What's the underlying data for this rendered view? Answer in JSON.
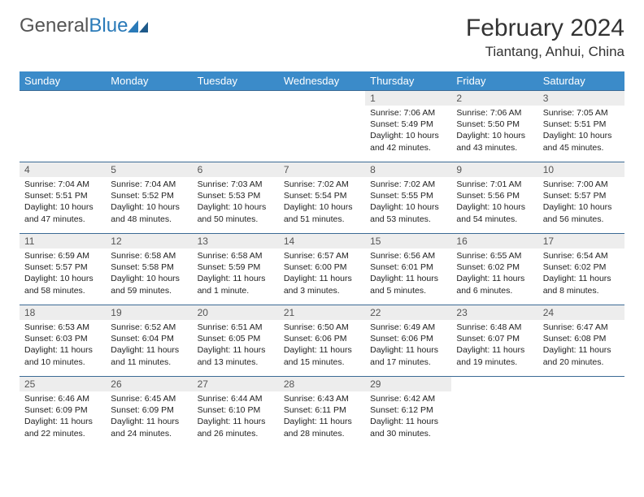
{
  "logo": {
    "word1": "General",
    "word2": "Blue"
  },
  "title": "February 2024",
  "location": "Tiantang, Anhui, China",
  "colors": {
    "header_bg": "#3b8bc9",
    "header_text": "#ffffff",
    "row_border": "#3b6a95",
    "daynum_bg": "#ededed",
    "logo_gray": "#555555",
    "logo_blue": "#2a7ab8"
  },
  "typography": {
    "month_title_pt": 30,
    "location_pt": 17,
    "dayheader_pt": 13,
    "daynum_pt": 12,
    "body_pt": 10.5
  },
  "day_headers": [
    "Sunday",
    "Monday",
    "Tuesday",
    "Wednesday",
    "Thursday",
    "Friday",
    "Saturday"
  ],
  "weeks": [
    [
      {
        "empty": true
      },
      {
        "empty": true
      },
      {
        "empty": true
      },
      {
        "empty": true
      },
      {
        "n": "1",
        "sr": "Sunrise: 7:06 AM",
        "ss": "Sunset: 5:49 PM",
        "dl": "Daylight: 10 hours and 42 minutes."
      },
      {
        "n": "2",
        "sr": "Sunrise: 7:06 AM",
        "ss": "Sunset: 5:50 PM",
        "dl": "Daylight: 10 hours and 43 minutes."
      },
      {
        "n": "3",
        "sr": "Sunrise: 7:05 AM",
        "ss": "Sunset: 5:51 PM",
        "dl": "Daylight: 10 hours and 45 minutes."
      }
    ],
    [
      {
        "n": "4",
        "sr": "Sunrise: 7:04 AM",
        "ss": "Sunset: 5:51 PM",
        "dl": "Daylight: 10 hours and 47 minutes."
      },
      {
        "n": "5",
        "sr": "Sunrise: 7:04 AM",
        "ss": "Sunset: 5:52 PM",
        "dl": "Daylight: 10 hours and 48 minutes."
      },
      {
        "n": "6",
        "sr": "Sunrise: 7:03 AM",
        "ss": "Sunset: 5:53 PM",
        "dl": "Daylight: 10 hours and 50 minutes."
      },
      {
        "n": "7",
        "sr": "Sunrise: 7:02 AM",
        "ss": "Sunset: 5:54 PM",
        "dl": "Daylight: 10 hours and 51 minutes."
      },
      {
        "n": "8",
        "sr": "Sunrise: 7:02 AM",
        "ss": "Sunset: 5:55 PM",
        "dl": "Daylight: 10 hours and 53 minutes."
      },
      {
        "n": "9",
        "sr": "Sunrise: 7:01 AM",
        "ss": "Sunset: 5:56 PM",
        "dl": "Daylight: 10 hours and 54 minutes."
      },
      {
        "n": "10",
        "sr": "Sunrise: 7:00 AM",
        "ss": "Sunset: 5:57 PM",
        "dl": "Daylight: 10 hours and 56 minutes."
      }
    ],
    [
      {
        "n": "11",
        "sr": "Sunrise: 6:59 AM",
        "ss": "Sunset: 5:57 PM",
        "dl": "Daylight: 10 hours and 58 minutes."
      },
      {
        "n": "12",
        "sr": "Sunrise: 6:58 AM",
        "ss": "Sunset: 5:58 PM",
        "dl": "Daylight: 10 hours and 59 minutes."
      },
      {
        "n": "13",
        "sr": "Sunrise: 6:58 AM",
        "ss": "Sunset: 5:59 PM",
        "dl": "Daylight: 11 hours and 1 minute."
      },
      {
        "n": "14",
        "sr": "Sunrise: 6:57 AM",
        "ss": "Sunset: 6:00 PM",
        "dl": "Daylight: 11 hours and 3 minutes."
      },
      {
        "n": "15",
        "sr": "Sunrise: 6:56 AM",
        "ss": "Sunset: 6:01 PM",
        "dl": "Daylight: 11 hours and 5 minutes."
      },
      {
        "n": "16",
        "sr": "Sunrise: 6:55 AM",
        "ss": "Sunset: 6:02 PM",
        "dl": "Daylight: 11 hours and 6 minutes."
      },
      {
        "n": "17",
        "sr": "Sunrise: 6:54 AM",
        "ss": "Sunset: 6:02 PM",
        "dl": "Daylight: 11 hours and 8 minutes."
      }
    ],
    [
      {
        "n": "18",
        "sr": "Sunrise: 6:53 AM",
        "ss": "Sunset: 6:03 PM",
        "dl": "Daylight: 11 hours and 10 minutes."
      },
      {
        "n": "19",
        "sr": "Sunrise: 6:52 AM",
        "ss": "Sunset: 6:04 PM",
        "dl": "Daylight: 11 hours and 11 minutes."
      },
      {
        "n": "20",
        "sr": "Sunrise: 6:51 AM",
        "ss": "Sunset: 6:05 PM",
        "dl": "Daylight: 11 hours and 13 minutes."
      },
      {
        "n": "21",
        "sr": "Sunrise: 6:50 AM",
        "ss": "Sunset: 6:06 PM",
        "dl": "Daylight: 11 hours and 15 minutes."
      },
      {
        "n": "22",
        "sr": "Sunrise: 6:49 AM",
        "ss": "Sunset: 6:06 PM",
        "dl": "Daylight: 11 hours and 17 minutes."
      },
      {
        "n": "23",
        "sr": "Sunrise: 6:48 AM",
        "ss": "Sunset: 6:07 PM",
        "dl": "Daylight: 11 hours and 19 minutes."
      },
      {
        "n": "24",
        "sr": "Sunrise: 6:47 AM",
        "ss": "Sunset: 6:08 PM",
        "dl": "Daylight: 11 hours and 20 minutes."
      }
    ],
    [
      {
        "n": "25",
        "sr": "Sunrise: 6:46 AM",
        "ss": "Sunset: 6:09 PM",
        "dl": "Daylight: 11 hours and 22 minutes."
      },
      {
        "n": "26",
        "sr": "Sunrise: 6:45 AM",
        "ss": "Sunset: 6:09 PM",
        "dl": "Daylight: 11 hours and 24 minutes."
      },
      {
        "n": "27",
        "sr": "Sunrise: 6:44 AM",
        "ss": "Sunset: 6:10 PM",
        "dl": "Daylight: 11 hours and 26 minutes."
      },
      {
        "n": "28",
        "sr": "Sunrise: 6:43 AM",
        "ss": "Sunset: 6:11 PM",
        "dl": "Daylight: 11 hours and 28 minutes."
      },
      {
        "n": "29",
        "sr": "Sunrise: 6:42 AM",
        "ss": "Sunset: 6:12 PM",
        "dl": "Daylight: 11 hours and 30 minutes."
      },
      {
        "empty": true
      },
      {
        "empty": true
      }
    ]
  ]
}
